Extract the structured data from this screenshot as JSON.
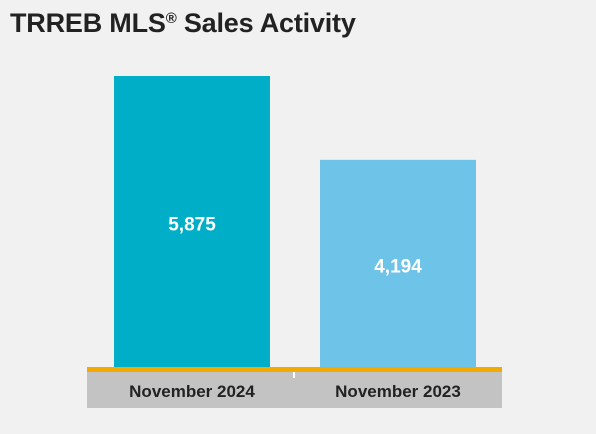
{
  "chart_data": {
    "type": "bar",
    "title": "TRREB MLS",
    "title_mark": "®",
    "title_suffix": " Sales Activity",
    "categories": [
      "November 2024",
      "November 2023"
    ],
    "values": [
      5875,
      4194
    ],
    "value_labels": [
      "5,875",
      "4,194"
    ],
    "ylim": [
      0,
      6000
    ],
    "grid": false,
    "legend": "none",
    "colors": {
      "bars": [
        "#00aec7",
        "#6ec4e8"
      ],
      "baseline": "#f2a900",
      "category_band": "#c3c3c3",
      "value_label": "#ffffff",
      "category_label": "#222222"
    }
  }
}
